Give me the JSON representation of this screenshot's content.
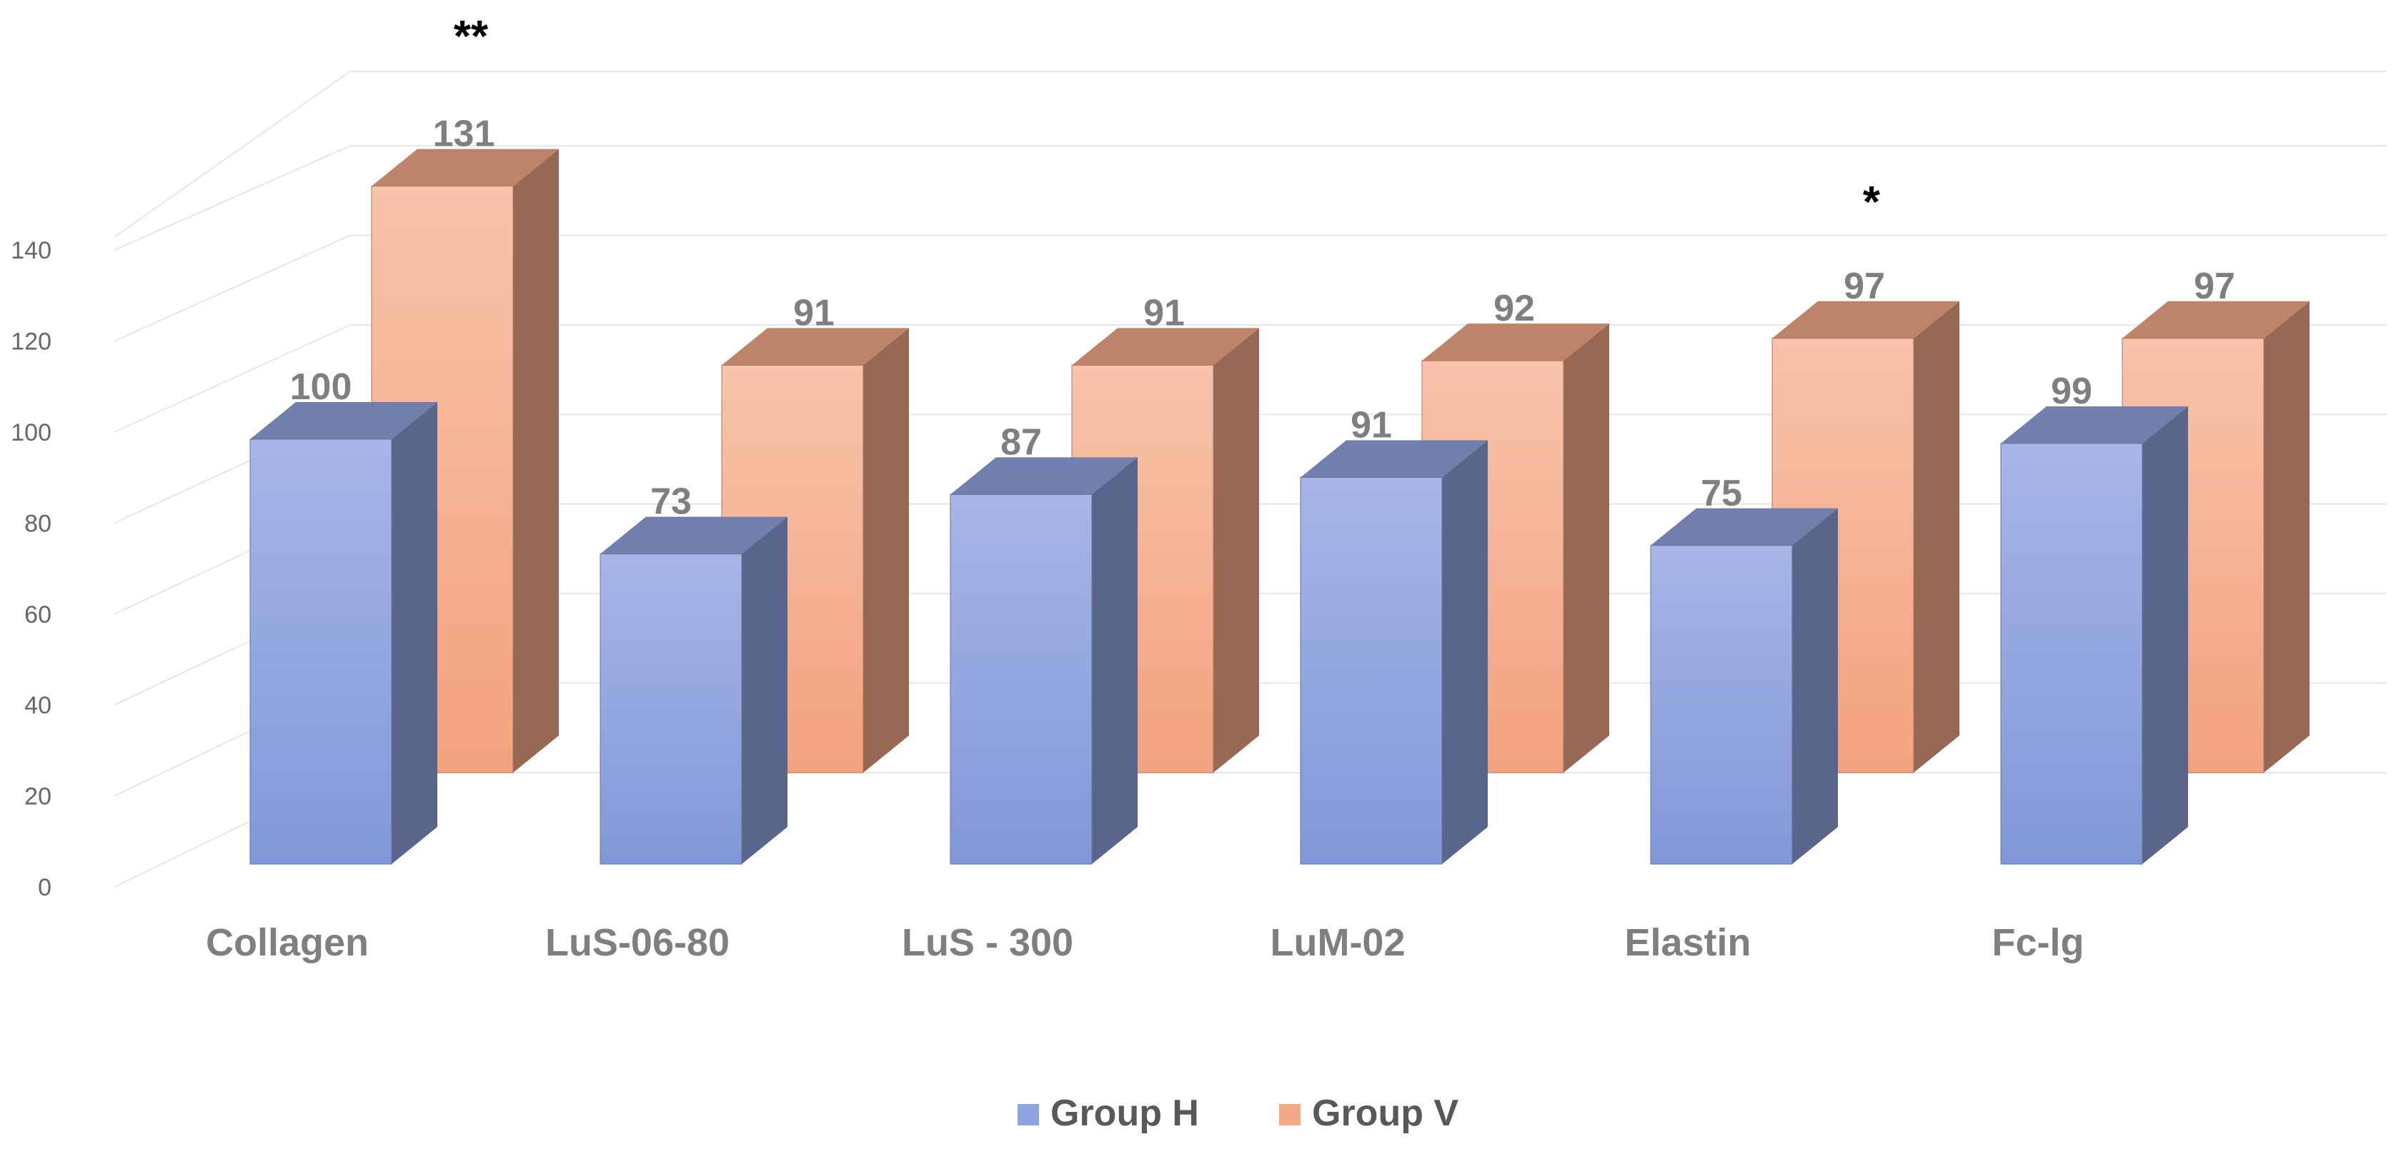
{
  "chart_data": {
    "type": "bar",
    "subtype": "3d-clustered-column",
    "title": "",
    "xlabel": "",
    "ylabel": "",
    "categories": [
      "Collagen",
      "LuS-06-80",
      "LuS - 300",
      "LuM-02",
      "Elastin",
      "Fc-lg"
    ],
    "series": [
      {
        "name": "Group H",
        "values": [
          100,
          73,
          87,
          91,
          75,
          99
        ],
        "color": "#8fa3de"
      },
      {
        "name": "Group V",
        "values": [
          131,
          91,
          91,
          92,
          97,
          97
        ],
        "color": "#f4a987"
      }
    ],
    "y_ticks": [
      "0",
      "20",
      "40",
      "60",
      "80",
      "100",
      "120",
      "140"
    ],
    "ylim": [
      0,
      140
    ],
    "grid": true,
    "legend_position": "bottom",
    "annotations": [
      {
        "category": "Collagen",
        "text": "**"
      },
      {
        "category": "Elastin",
        "text": "*"
      }
    ]
  }
}
